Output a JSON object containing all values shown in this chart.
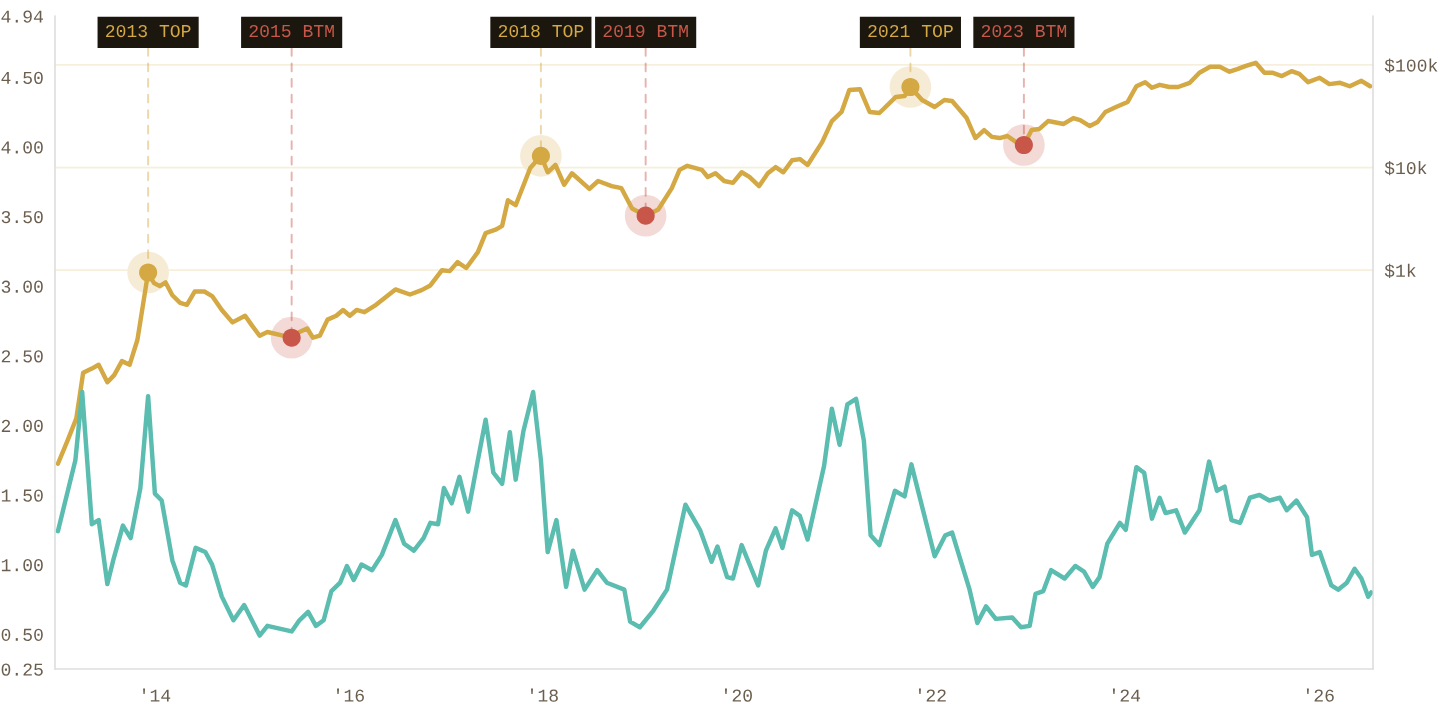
{
  "chart_data": {
    "type": "line",
    "xlim": [
      2012.97,
      2026.56
    ],
    "xticks": [
      {
        "value": 2014,
        "label": "'14"
      },
      {
        "value": 2016,
        "label": "'16"
      },
      {
        "value": 2018,
        "label": "'18"
      },
      {
        "value": 2020,
        "label": "'20"
      },
      {
        "value": 2022,
        "label": "'22"
      },
      {
        "value": 2024,
        "label": "'24"
      },
      {
        "value": 2026,
        "label": "'26"
      }
    ],
    "ylim": [
      0.25,
      4.94
    ],
    "yticks": [
      {
        "value": 0.25,
        "label": "0.25"
      },
      {
        "value": 0.5,
        "label": "0.50"
      },
      {
        "value": 1.0,
        "label": "1.00"
      },
      {
        "value": 1.5,
        "label": "1.50"
      },
      {
        "value": 2.0,
        "label": "2.00"
      },
      {
        "value": 2.5,
        "label": "2.50"
      },
      {
        "value": 3.0,
        "label": "3.00"
      },
      {
        "value": 3.5,
        "label": "3.50"
      },
      {
        "value": 4.0,
        "label": "4.00"
      },
      {
        "value": 4.5,
        "label": "4.50"
      },
      {
        "value": 4.94,
        "label": "4.94"
      }
    ],
    "y2lim": [
      0.13,
      300000
    ],
    "y2ticks": [
      {
        "value": 1000,
        "label": "$1k"
      },
      {
        "value": 10000,
        "label": "$10k"
      },
      {
        "value": 100000,
        "label": "$100k"
      }
    ],
    "log": "y2",
    "grid": "y",
    "series": [
      {
        "type": "line",
        "color": "#5bbcb0",
        "x": [
          2013.0,
          2013.18,
          2013.25,
          2013.35,
          2013.42,
          2013.51,
          2013.57,
          2013.67,
          2013.75,
          2013.85,
          2013.93,
          2014.0,
          2014.07,
          2014.18,
          2014.26,
          2014.32,
          2014.42,
          2014.52,
          2014.59,
          2014.69,
          2014.81,
          2014.92,
          2015.0,
          2015.08,
          2015.16,
          2015.41,
          2015.49,
          2015.58,
          2015.66,
          2015.74,
          2015.82,
          2015.91,
          2015.98,
          2016.05,
          2016.13,
          2016.24,
          2016.34,
          2016.48,
          2016.57,
          2016.67,
          2016.77,
          2016.84,
          2016.92,
          2016.98,
          2017.06,
          2017.14,
          2017.23,
          2017.33,
          2017.41,
          2017.49,
          2017.58,
          2017.66,
          2017.72,
          2017.8,
          2017.9,
          2017.98,
          2018.05,
          2018.14,
          2018.24,
          2018.31,
          2018.43,
          2018.56,
          2018.66,
          2018.84,
          2018.9,
          2019.0,
          2019.14,
          2019.28,
          2019.47,
          2019.62,
          2019.74,
          2019.8,
          2019.9,
          2019.96,
          2020.05,
          2020.22,
          2020.3,
          2020.4,
          2020.47,
          2020.57,
          2020.65,
          2020.73,
          2020.9,
          2020.98,
          2021.06,
          2021.14,
          2021.23,
          2021.31,
          2021.38,
          2021.47,
          2021.63,
          2021.73,
          2021.8,
          2022.04,
          2022.15,
          2022.22,
          2022.4,
          2022.48,
          2022.57,
          2022.67,
          2022.84,
          2022.93,
          2023.02,
          2023.08,
          2023.16,
          2023.24,
          2023.38,
          2023.49,
          2023.58,
          2023.67,
          2023.74,
          2023.82,
          2023.95,
          2024.01,
          2024.12,
          2024.2,
          2024.28,
          2024.36,
          2024.42,
          2024.53,
          2024.62,
          2024.77,
          2024.87,
          2024.95,
          2025.03,
          2025.1,
          2025.19,
          2025.29,
          2025.39,
          2025.49,
          2025.6,
          2025.67,
          2025.77,
          2025.88,
          2025.93,
          2026.01,
          2026.13,
          2026.2,
          2026.29,
          2026.37,
          2026.44,
          2026.51,
          2026.54
        ],
        "values": [
          1.24,
          1.75,
          2.24,
          1.29,
          1.32,
          0.86,
          1.03,
          1.28,
          1.19,
          1.55,
          2.21,
          1.51,
          1.46,
          1.03,
          0.87,
          0.85,
          1.12,
          1.09,
          1.0,
          0.77,
          0.6,
          0.71,
          0.6,
          0.49,
          0.56,
          0.52,
          0.6,
          0.66,
          0.56,
          0.6,
          0.81,
          0.87,
          0.99,
          0.89,
          1.0,
          0.96,
          1.07,
          1.32,
          1.15,
          1.1,
          1.19,
          1.3,
          1.29,
          1.55,
          1.44,
          1.63,
          1.38,
          1.75,
          2.04,
          1.66,
          1.58,
          1.95,
          1.61,
          1.96,
          2.24,
          1.75,
          1.09,
          1.32,
          0.84,
          1.1,
          0.82,
          0.96,
          0.87,
          0.82,
          0.59,
          0.55,
          0.67,
          0.82,
          1.43,
          1.25,
          1.02,
          1.13,
          0.91,
          0.9,
          1.14,
          0.85,
          1.1,
          1.26,
          1.12,
          1.39,
          1.35,
          1.18,
          1.71,
          2.12,
          1.86,
          2.15,
          2.19,
          1.89,
          1.21,
          1.14,
          1.53,
          1.49,
          1.72,
          1.06,
          1.21,
          1.23,
          0.82,
          0.58,
          0.7,
          0.61,
          0.62,
          0.55,
          0.56,
          0.79,
          0.81,
          0.96,
          0.9,
          0.99,
          0.95,
          0.84,
          0.91,
          1.15,
          1.3,
          1.25,
          1.7,
          1.66,
          1.33,
          1.48,
          1.37,
          1.39,
          1.23,
          1.39,
          1.74,
          1.53,
          1.56,
          1.32,
          1.3,
          1.48,
          1.5,
          1.46,
          1.48,
          1.39,
          1.46,
          1.34,
          1.07,
          1.09,
          0.85,
          0.82,
          0.87,
          0.97,
          0.9,
          0.77,
          0.8
        ]
      },
      {
        "type": "line",
        "axis": "y2",
        "color": "#d4a843",
        "x": [
          2013.0,
          2013.1,
          2013.19,
          2013.26,
          2013.35,
          2013.42,
          2013.51,
          2013.58,
          2013.66,
          2013.74,
          2013.82,
          2013.93,
          2013.99,
          2014.05,
          2014.11,
          2014.18,
          2014.26,
          2014.33,
          2014.41,
          2014.51,
          2014.59,
          2014.69,
          2014.8,
          2014.93,
          2015.0,
          2015.08,
          2015.16,
          2015.41,
          2015.49,
          2015.57,
          2015.63,
          2015.7,
          2015.78,
          2015.87,
          2015.94,
          2016.01,
          2016.08,
          2016.16,
          2016.28,
          2016.48,
          2016.63,
          2016.75,
          2016.84,
          2016.96,
          2017.04,
          2017.12,
          2017.21,
          2017.33,
          2017.41,
          2017.52,
          2017.58,
          2017.64,
          2017.72,
          2017.87,
          2017.98,
          2018.05,
          2018.13,
          2018.22,
          2018.3,
          2018.48,
          2018.57,
          2018.71,
          2018.81,
          2018.92,
          2019.06,
          2019.19,
          2019.33,
          2019.41,
          2019.49,
          2019.64,
          2019.7,
          2019.78,
          2019.87,
          2019.96,
          2020.05,
          2020.13,
          2020.23,
          2020.32,
          2020.4,
          2020.48,
          2020.57,
          2020.65,
          2020.73,
          2020.88,
          2020.98,
          2021.08,
          2021.16,
          2021.27,
          2021.37,
          2021.47,
          2021.64,
          2021.73,
          2021.79,
          2021.91,
          2022.04,
          2022.14,
          2022.22,
          2022.37,
          2022.46,
          2022.55,
          2022.63,
          2022.71,
          2022.79,
          2022.88,
          2022.96,
          2023.04,
          2023.12,
          2023.21,
          2023.37,
          2023.47,
          2023.54,
          2023.64,
          2023.72,
          2023.8,
          2023.91,
          2024.03,
          2024.12,
          2024.21,
          2024.28,
          2024.36,
          2024.46,
          2024.55,
          2024.67,
          2024.77,
          2024.88,
          2024.98,
          2025.08,
          2025.16,
          2025.25,
          2025.35,
          2025.44,
          2025.52,
          2025.62,
          2025.72,
          2025.8,
          2025.89,
          2026.01,
          2026.11,
          2026.22,
          2026.32,
          2026.44,
          2026.53
        ],
        "values": [
          13,
          22,
          36,
          100,
          110,
          120,
          81,
          95,
          130,
          120,
          210,
          950,
          750,
          700,
          760,
          570,
          480,
          460,
          620,
          620,
          560,
          410,
          310,
          360,
          290,
          230,
          250,
          220,
          250,
          270,
          220,
          230,
          330,
          360,
          410,
          360,
          410,
          390,
          460,
          650,
          580,
          640,
          710,
          1000,
          980,
          1200,
          1050,
          1500,
          2300,
          2500,
          2700,
          4800,
          4300,
          9900,
          13000,
          9000,
          10600,
          6800,
          8800,
          6200,
          7400,
          6600,
          6300,
          4000,
          3400,
          3900,
          6300,
          9500,
          10400,
          9500,
          8100,
          8800,
          7400,
          7100,
          9000,
          8100,
          6600,
          8800,
          10100,
          9000,
          11800,
          12100,
          10600,
          17700,
          28400,
          34800,
          57000,
          58000,
          34800,
          34000,
          48800,
          49900,
          61000,
          45600,
          38900,
          45600,
          44600,
          30400,
          19400,
          23200,
          19900,
          19400,
          20300,
          17700,
          16600,
          23200,
          23800,
          28400,
          26600,
          30400,
          29000,
          25400,
          27800,
          34800,
          38900,
          43600,
          62000,
          68000,
          60000,
          64000,
          61000,
          61000,
          67000,
          84000,
          96000,
          96000,
          86000,
          91000,
          98000,
          105000,
          84000,
          84000,
          78000,
          87000,
          82000,
          68000,
          75000,
          65000,
          67000,
          62000,
          70000,
          62000
        ]
      },
      {
        "type": "scatter",
        "axis": "y2",
        "color": "#d4a843",
        "x": [
          2013.93,
          2017.98,
          2021.79
        ],
        "values": [
          950,
          13000,
          61000
        ]
      },
      {
        "type": "scatter",
        "axis": "y2",
        "color": "#c8574a",
        "x": [
          2015.41,
          2019.06,
          2022.96
        ],
        "values": [
          220,
          3400,
          16600
        ]
      }
    ],
    "annotations": [
      {
        "text": "2013 TOP",
        "x": 2013.93,
        "y": 3.1
      },
      {
        "text": "2015 BTM",
        "x": 2015.41,
        "y": 2.63
      },
      {
        "text": "2018 TOP",
        "x": 2017.98,
        "y": 3.94
      },
      {
        "text": "2019 BTM",
        "x": 2019.06,
        "y": 3.5
      },
      {
        "text": "2021 TOP",
        "x": 2021.79,
        "y": 4.43
      },
      {
        "text": "2023 BTM",
        "x": 2022.96,
        "y": 4.01
      }
    ]
  }
}
